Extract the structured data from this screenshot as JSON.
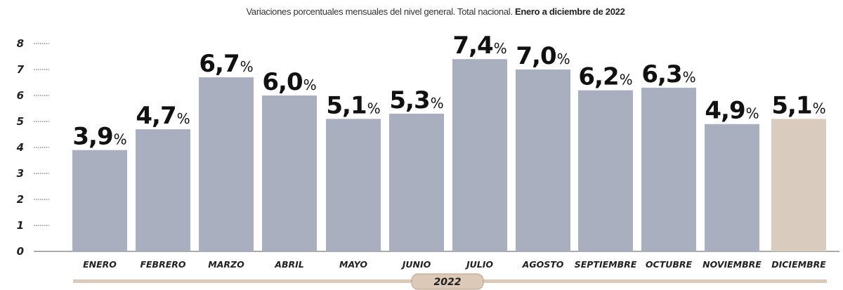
{
  "chart_data": {
    "type": "bar",
    "title_regular": "Variaciones porcentuales mensuales del nivel general. Total nacional.",
    "title_bold": "Enero a diciembre de 2022",
    "categories": [
      "ENERO",
      "FEBRERO",
      "MARZO",
      "ABRIL",
      "MAYO",
      "JUNIO",
      "JULIO",
      "AGOSTO",
      "SEPTIEMBRE",
      "OCTUBRE",
      "NOVIEMBRE",
      "DICIEMBRE"
    ],
    "values": [
      3.9,
      4.7,
      6.7,
      6.0,
      5.1,
      5.3,
      7.4,
      7.0,
      6.2,
      6.3,
      4.9,
      5.1
    ],
    "value_labels": [
      "3,9",
      "4,7",
      "6,7",
      "6,0",
      "5,1",
      "5,3",
      "7,4",
      "7,0",
      "6,2",
      "6,3",
      "4,9",
      "5,1"
    ],
    "value_suffix": "%",
    "y_ticks": [
      "0",
      "1",
      "2",
      "3",
      "4",
      "5",
      "6",
      "7",
      "8"
    ],
    "ylim": [
      0,
      8
    ],
    "xlabel": "2022",
    "bar_color": "#a9afbf",
    "highlight_color": "#d9cbbd",
    "highlight_index": 11,
    "axis_color": "#555555",
    "band_color": "#dcc9b7"
  }
}
